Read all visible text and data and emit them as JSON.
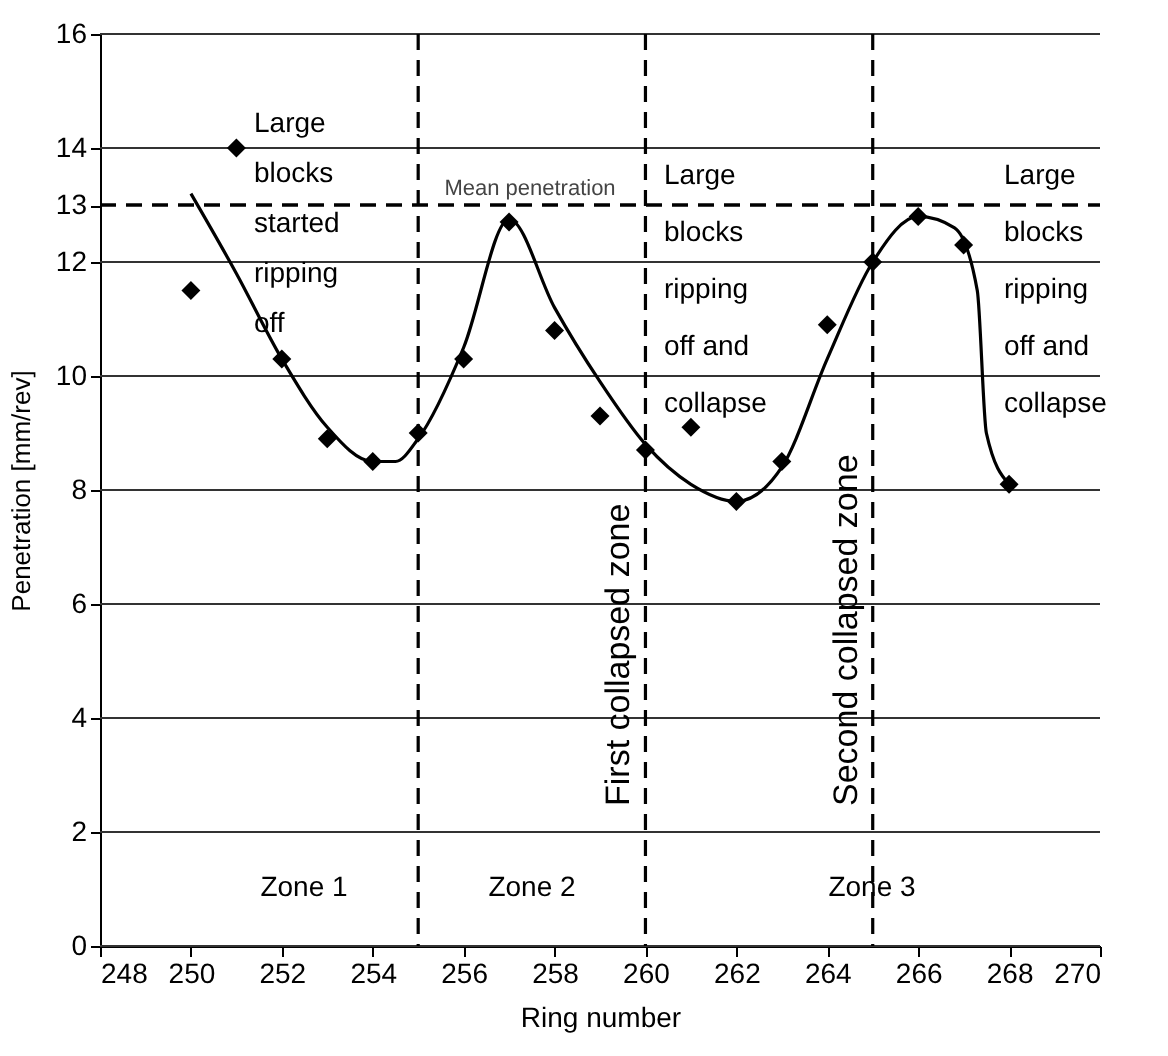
{
  "chart_data": {
    "type": "scatter",
    "xlabel": "Ring number",
    "ylabel": "Penetration [mm/rev]",
    "xlim": [
      248,
      270
    ],
    "ylim": [
      0,
      16
    ],
    "xticks": [
      248,
      250,
      252,
      254,
      256,
      258,
      260,
      262,
      264,
      266,
      268,
      270
    ],
    "yticks": [
      0,
      2,
      4,
      6,
      8,
      10,
      12,
      13,
      14,
      16
    ],
    "grid": "y",
    "series": [
      {
        "marker": "diamond",
        "color": "#000000",
        "x": [
          250,
          251,
          252,
          253,
          254,
          255,
          256,
          257,
          258,
          259,
          260,
          261,
          262,
          263,
          264,
          265,
          266,
          267,
          268
        ],
        "values": [
          11.5,
          14.0,
          10.3,
          8.9,
          8.5,
          9.0,
          10.3,
          12.7,
          10.8,
          9.3,
          8.7,
          9.1,
          7.8,
          8.5,
          10.9,
          12.0,
          12.8,
          12.3,
          8.1
        ]
      },
      {
        "type": "line",
        "marker": "none",
        "color": "#000000",
        "x": [
          250,
          251,
          252,
          253,
          254,
          254.5,
          255,
          256,
          257,
          258,
          259,
          260,
          261,
          262,
          263,
          264,
          265,
          266,
          266.8,
          267.3,
          267.5,
          268
        ],
        "values": [
          13.2,
          11.8,
          10.3,
          9.1,
          8.5,
          8.5,
          8.9,
          10.5,
          12.75,
          11.2,
          9.9,
          8.8,
          8.1,
          7.8,
          8.4,
          10.3,
          12.0,
          12.8,
          12.6,
          11.5,
          9.0,
          8.1
        ]
      }
    ],
    "ref_lines": [
      {
        "axis": "y",
        "value": 13,
        "label": "Mean penetration",
        "line_style": "dashed"
      },
      {
        "axis": "x",
        "value": 255,
        "line_style": "dashed"
      },
      {
        "axis": "x",
        "value": 260,
        "label": "First collapsed zone",
        "line_style": "dashed"
      },
      {
        "axis": "x",
        "value": 265,
        "label": "Second collapsed zone",
        "line_style": "dashed"
      }
    ],
    "annotations": [
      "Large\nblocks\nstarted\nripping\noff",
      "Large\nblocks\nripping\noff and\ncollapse",
      "Large\nblocks\nripping\noff and\ncollapse",
      "Zone 1",
      "Zone 2",
      "Zone 3"
    ]
  }
}
